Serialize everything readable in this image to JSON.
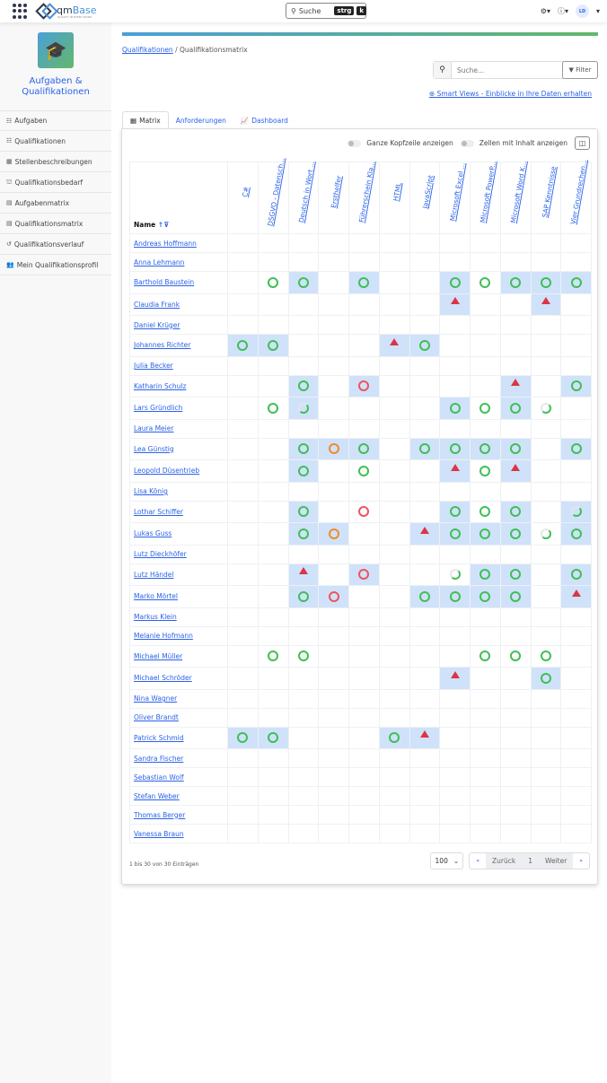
{
  "topbar": {
    "logo_text": "qm",
    "logo_text2": "Base",
    "logo_tagline": "QUALITY IN EVERY WORD",
    "search_label": "Suche",
    "shortcut1": "strg",
    "shortcut2": "k",
    "user_initials": "LD",
    "icons": [
      "apps-grid-icon",
      "gear-icon",
      "help-icon"
    ]
  },
  "sidebar": {
    "module_title": "Aufgaben & Qualifikationen",
    "module_icon": "graduation-cap-icon",
    "items": [
      {
        "label": "Aufgaben",
        "icon": "☷"
      },
      {
        "label": "Qualifikationen",
        "icon": "☷"
      },
      {
        "label": "Stellenbeschreibungen",
        "icon": "▦"
      },
      {
        "label": "Qualifikationsbedarf",
        "icon": "⛫"
      },
      {
        "label": "Aufgabenmatrix",
        "icon": "▤"
      },
      {
        "label": "Qualifikationsmatrix",
        "icon": "▤"
      },
      {
        "label": "Qualifikationsverlauf",
        "icon": "↺"
      },
      {
        "label": "Mein Qualifikationsprofil",
        "icon": "👥"
      }
    ]
  },
  "accent_colors": {
    "link": "#2a62e8",
    "highlight": "#cfe2fa",
    "ok": "#3fbf55",
    "warn": "#f28a24",
    "bad": "#f0545a",
    "alert": "#dc3545"
  },
  "breadcrumb": {
    "parent": "Qualifikationen",
    "sep": "/",
    "current": "Qualifikationsmatrix"
  },
  "search": {
    "placeholder": "Suche...",
    "filter_label": "Filter"
  },
  "smart_views": "Smart Views - Einblicke in Ihre Daten erhalten",
  "tabs": [
    {
      "label": "Matrix",
      "active": true
    },
    {
      "label": "Anforderungen"
    },
    {
      "label": "Dashboard"
    }
  ],
  "toggles": {
    "full_header": "Ganze Kopfzeile anzeigen",
    "cells_with_content": "Zellen mit Inhalt anzeigen"
  },
  "matrix": {
    "name_header": "Name",
    "columns": [
      "C#",
      "DSGVO - Datensch...",
      "Deutsch in Wort ...",
      "Ersthelfer",
      "Führerschein Kla...",
      "HTML",
      "JavaScript",
      "Microsoft Excel ...",
      "Microsoft PowerP...",
      "Microsoft Word K...",
      "SAP Kenntnisse",
      "Vier Grundrechen..."
    ],
    "legend_codes": {
      "g": "fulfilled",
      "o": "partially-fulfilled-orange",
      "r": "not-fulfilled",
      "w": "warning",
      "p": "in-progress",
      "+": "required"
    },
    "rows": [
      {
        "name": "Andreas Hoffmann",
        "cells": [
          "",
          "",
          "",
          "",
          "",
          "",
          "",
          "",
          "",
          "",
          "",
          ""
        ]
      },
      {
        "name": "Anna Lehmann",
        "cells": [
          "",
          "",
          "",
          "",
          "",
          "",
          "",
          "",
          "",
          "",
          "",
          ""
        ]
      },
      {
        "name": "Barthold Baustein",
        "cells": [
          "",
          "g",
          "g+",
          "",
          "g+",
          "",
          "",
          "g+",
          "g",
          "g+",
          "g+",
          "g+"
        ]
      },
      {
        "name": "Claudia Frank",
        "cells": [
          "",
          "",
          "",
          "",
          "",
          "",
          "",
          "w+",
          "",
          "",
          "w+",
          ""
        ]
      },
      {
        "name": "Daniel Krüger",
        "cells": [
          "",
          "",
          "",
          "",
          "",
          "",
          "",
          "",
          "",
          "",
          "",
          ""
        ]
      },
      {
        "name": "Johannes Richter",
        "cells": [
          "g+",
          "g+",
          "",
          "",
          "",
          "w+",
          "g+",
          "",
          "",
          "",
          "",
          ""
        ]
      },
      {
        "name": "Julia Becker",
        "cells": [
          "",
          "",
          "",
          "",
          "",
          "",
          "",
          "",
          "",
          "",
          "",
          ""
        ]
      },
      {
        "name": "Katharin Schulz",
        "cells": [
          "",
          "",
          "g+",
          "",
          "r+",
          "",
          "",
          "",
          "",
          "w+",
          "",
          "g+"
        ]
      },
      {
        "name": "Lars Gründlich",
        "cells": [
          "",
          "g",
          "p+",
          "",
          "",
          "",
          "",
          "g+",
          "g",
          "g+",
          "p",
          ""
        ]
      },
      {
        "name": "Laura Meier",
        "cells": [
          "",
          "",
          "",
          "",
          "",
          "",
          "",
          "",
          "",
          "",
          "",
          ""
        ]
      },
      {
        "name": "Lea Günstig",
        "cells": [
          "",
          "",
          "g+",
          "o+",
          "g+",
          "",
          "g+",
          "g+",
          "g+",
          "g+",
          "",
          "g+"
        ]
      },
      {
        "name": "Leopold Düsentrieb",
        "cells": [
          "",
          "",
          "g+",
          "",
          "g",
          "",
          "",
          "w+",
          "g",
          "w+",
          "",
          ""
        ]
      },
      {
        "name": "Lisa König",
        "cells": [
          "",
          "",
          "",
          "",
          "",
          "",
          "",
          "",
          "",
          "",
          "",
          ""
        ]
      },
      {
        "name": "Lothar Schiffer",
        "cells": [
          "",
          "",
          "g+",
          "",
          "r",
          "",
          "",
          "g+",
          "g",
          "g+",
          "",
          "p+"
        ]
      },
      {
        "name": "Lukas Guss",
        "cells": [
          "",
          "",
          "g+",
          "o+",
          "",
          "",
          "w+",
          "g+",
          "g+",
          "g+",
          "p",
          "g+"
        ]
      },
      {
        "name": "Lutz Dieckhöfer",
        "cells": [
          "",
          "",
          "",
          "",
          "",
          "",
          "",
          "",
          "",
          "",
          "",
          ""
        ]
      },
      {
        "name": "Lutz Händel",
        "cells": [
          "",
          "",
          "w+",
          "",
          "r+",
          "",
          "",
          "p",
          "g+",
          "g+",
          "",
          "g+"
        ]
      },
      {
        "name": "Marko Mörtel",
        "cells": [
          "",
          "",
          "g+",
          "r+",
          "",
          "",
          "g+",
          "g+",
          "g+",
          "g+",
          "",
          "w+"
        ]
      },
      {
        "name": "Markus Klein",
        "cells": [
          "",
          "",
          "",
          "",
          "",
          "",
          "",
          "",
          "",
          "",
          "",
          ""
        ]
      },
      {
        "name": "Melanie Hofmann",
        "cells": [
          "",
          "",
          "",
          "",
          "",
          "",
          "",
          "",
          "",
          "",
          "",
          ""
        ]
      },
      {
        "name": "Michael Müller",
        "cells": [
          "",
          "g",
          "g",
          "",
          "",
          "",
          "",
          "",
          "g",
          "g",
          "g",
          ""
        ]
      },
      {
        "name": "Michael Schröder",
        "cells": [
          "",
          "",
          "",
          "",
          "",
          "",
          "",
          "w+",
          "",
          "",
          "g+",
          ""
        ]
      },
      {
        "name": "Nina Wagner",
        "cells": [
          "",
          "",
          "",
          "",
          "",
          "",
          "",
          "",
          "",
          "",
          "",
          ""
        ]
      },
      {
        "name": "Oliver Brandt",
        "cells": [
          "",
          "",
          "",
          "",
          "",
          "",
          "",
          "",
          "",
          "",
          "",
          ""
        ]
      },
      {
        "name": "Patrick Schmid",
        "cells": [
          "g+",
          "g+",
          "",
          "",
          "",
          "g+",
          "w+",
          "",
          "",
          "",
          "",
          ""
        ]
      },
      {
        "name": "Sandra Fischer",
        "cells": [
          "",
          "",
          "",
          "",
          "",
          "",
          "",
          "",
          "",
          "",
          "",
          ""
        ]
      },
      {
        "name": "Sebastian Wolf",
        "cells": [
          "",
          "",
          "",
          "",
          "",
          "",
          "",
          "",
          "",
          "",
          "",
          ""
        ]
      },
      {
        "name": "Stefan Weber",
        "cells": [
          "",
          "",
          "",
          "",
          "",
          "",
          "",
          "",
          "",
          "",
          "",
          ""
        ]
      },
      {
        "name": "Thomas Berger",
        "cells": [
          "",
          "",
          "",
          "",
          "",
          "",
          "",
          "",
          "",
          "",
          "",
          ""
        ]
      },
      {
        "name": "Vanessa Braun",
        "cells": [
          "",
          "",
          "",
          "",
          "",
          "",
          "",
          "",
          "",
          "",
          "",
          ""
        ]
      }
    ]
  },
  "footer": {
    "info": "1 bis 30 von 30 Einträgen",
    "per_page": "100",
    "first": "«",
    "prev": "Zurück",
    "page": "1",
    "next": "Weiter",
    "last": "»"
  }
}
